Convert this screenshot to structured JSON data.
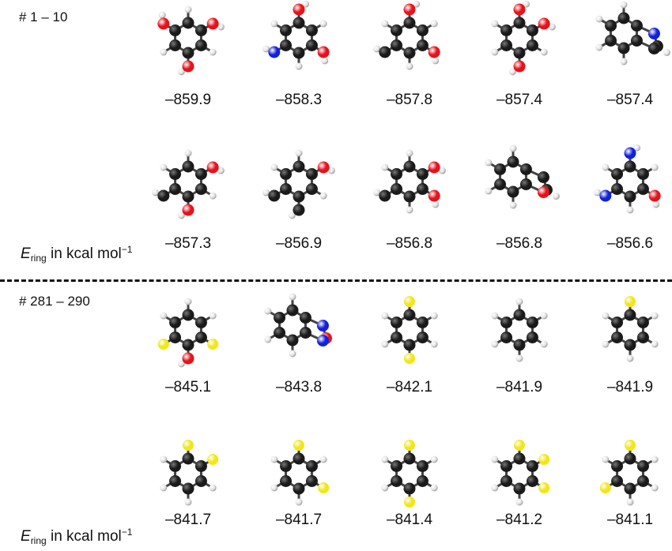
{
  "groups": [
    {
      "label": "# 1 – 10",
      "rows": [
        {
          "energies": [
            "–859.9",
            "–858.3",
            "–857.8",
            "–857.4",
            "–857.4"
          ]
        },
        {
          "energies": [
            "–857.3",
            "–856.9",
            "–856.8",
            "–856.8",
            "–856.6"
          ],
          "axis": true
        }
      ]
    },
    {
      "label": "# 281 – 290",
      "rows": [
        {
          "energies": [
            "–845.1",
            "–843.8",
            "–842.1",
            "–841.9",
            "–841.9"
          ]
        },
        {
          "energies": [
            "–841.7",
            "–841.7",
            "–841.4",
            "–841.2",
            "–841.1"
          ],
          "axis": true
        }
      ]
    }
  ],
  "axis_label": {
    "symbol": "E",
    "subscript": "ring",
    "text": " in kcal mol",
    "superscript": "−1"
  },
  "colors": {
    "carbon": "#1a1a1a",
    "hydrogen": "#e6e6e6",
    "oxygen": "#e8111a",
    "nitrogen": "#1020e0",
    "sulfur": "#f2e619",
    "divider": "#111111"
  },
  "molecules": [
    [
      "H",
      "O",
      "H",
      "O",
      "H",
      "O"
    ],
    [
      "O",
      "H",
      "O",
      "H",
      "N",
      "H"
    ],
    [
      "O",
      "H",
      "O",
      "H",
      "C",
      "H"
    ],
    [
      "O",
      "O",
      "H",
      "O",
      "H",
      "H"
    ],
    [
      "FUSED-N"
    ],
    [
      "H",
      "O",
      "H",
      "O",
      "C",
      "H"
    ],
    [
      "H",
      "O",
      "H",
      "C",
      "C",
      "H"
    ],
    [
      "H",
      "O",
      "O",
      "H",
      "C",
      "H"
    ],
    [
      "FUSED-O"
    ],
    [
      "N",
      "H",
      "O",
      "H",
      "N",
      "H"
    ],
    [
      "H",
      "H",
      "S",
      "O",
      "S",
      "H"
    ],
    [
      "FUSED-NO"
    ],
    [
      "S",
      "H",
      "H",
      "S",
      "H",
      "H"
    ],
    [
      "H",
      "H",
      "H",
      "H",
      "H",
      "H"
    ],
    [
      "S",
      "H",
      "H",
      "H",
      "H",
      "H"
    ],
    [
      "S",
      "S",
      "H",
      "H",
      "H",
      "H"
    ],
    [
      "S",
      "H",
      "S",
      "H",
      "H",
      "H"
    ],
    [
      "S",
      "H",
      "H",
      "S",
      "H",
      "H"
    ],
    [
      "S",
      "S",
      "S",
      "H",
      "H",
      "H"
    ],
    [
      "S",
      "H",
      "H",
      "H",
      "S",
      "H"
    ]
  ]
}
